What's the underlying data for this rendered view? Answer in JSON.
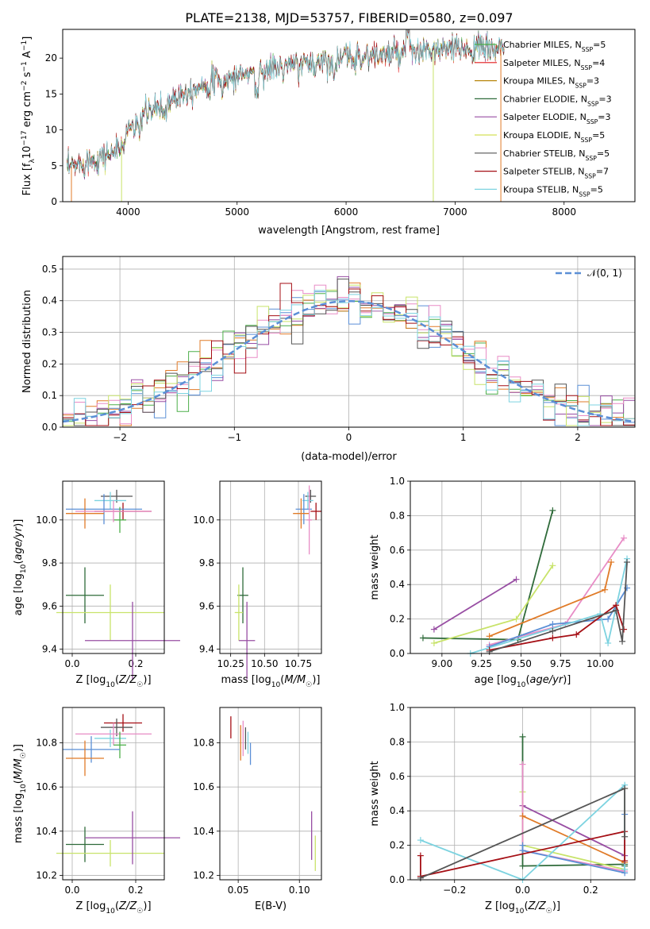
{
  "figure_title": "PLATE=2138, MJD=53757, FIBERID=0580, z=0.097",
  "chart_data": [
    {
      "type": "line",
      "panel": "spectrum",
      "xlabel": "wavelength [Angstrom, rest frame]",
      "ylabel": "Flux [fλ10⁻¹⁷ erg cm⁻² s⁻¹ A⁻¹]",
      "xlim": [
        3400,
        8650
      ],
      "ylim": [
        0,
        24
      ],
      "xticks": [
        "4000",
        "5000",
        "6000",
        "7000",
        "8000"
      ],
      "yticks": [
        "0",
        "5",
        "10",
        "15",
        "20"
      ],
      "legend_position": "top-right",
      "continuum": {
        "x": [
          3450,
          3600,
          3800,
          3950,
          4000,
          4100,
          4300,
          4500,
          4700,
          5000,
          5200,
          5400,
          5600,
          5800,
          6000,
          6200,
          6400,
          6600,
          6800,
          7000,
          7200,
          7400
        ],
        "y": [
          4.6,
          5.5,
          6.5,
          7.6,
          10.2,
          11.7,
          13.4,
          15.2,
          16.4,
          17.5,
          18.2,
          18.7,
          19.1,
          19.6,
          20.1,
          20.3,
          20.5,
          20.8,
          21.0,
          21.2,
          21.3,
          21.4
        ]
      },
      "series": [
        {
          "label": "Chabrier MILES, N_SSP=5",
          "color": "#4daf4a"
        },
        {
          "label": "Salpeter MILES, N_SSP=4",
          "color": "#e41a1c"
        },
        {
          "label": "Kroupa MILES, N_SSP=3",
          "color": "#b8860b"
        },
        {
          "label": "Chabrier ELODIE, N_SSP=3",
          "color": "#2f6b3a"
        },
        {
          "label": "Salpeter ELODIE, N_SSP=3",
          "color": "#984ea3"
        },
        {
          "label": "Kroupa ELODIE, N_SSP=5",
          "color": "#d4e157"
        },
        {
          "label": "Chabrier STELIB, N_SSP=5",
          "color": "#555555"
        },
        {
          "label": "Salpeter STELIB, N_SSP=7",
          "color": "#a50f15"
        },
        {
          "label": "Kroupa STELIB, N_SSP=5",
          "color": "#7dd3e0"
        }
      ]
    },
    {
      "type": "line",
      "panel": "residuals",
      "xlabel": "(data-model)/error",
      "ylabel": "Normed distribution",
      "xlim": [
        -2.5,
        2.5
      ],
      "ylim": [
        0,
        0.54
      ],
      "xticks": [
        "−2",
        "−1",
        "0",
        "1",
        "2"
      ],
      "yticks": [
        "0.0",
        "0.1",
        "0.2",
        "0.3",
        "0.4",
        "0.5"
      ],
      "legend": "𝒩(0, 1)",
      "legend_position": "top-right",
      "gaussian_color": "#5b8fd6",
      "histogram_colors": [
        "#4daf4a",
        "#e07b28",
        "#5b8fd6",
        "#984ea3",
        "#e88cc6",
        "#c8e36a",
        "#555555",
        "#a50f15",
        "#7dd3e0"
      ]
    },
    {
      "type": "scatter",
      "panel": "age-vs-metallicity",
      "xlabel": "Z [log10(Z/Z☉)]",
      "ylabel": "age  [log10(age/yr)]",
      "xlim": [
        -0.03,
        0.29
      ],
      "ylim": [
        9.38,
        10.18
      ],
      "xticks": [
        "0.0",
        "0.2"
      ],
      "yticks": [
        "9.4",
        "9.6",
        "9.8",
        "10.0"
      ],
      "points": [
        {
          "x": 0.16,
          "y": 10.04,
          "xerr": 0.09,
          "yerr": 0.04,
          "color": "#a50f15"
        },
        {
          "x": 0.14,
          "y": 10.11,
          "xerr": 0.05,
          "yerr": 0.03,
          "color": "#555555"
        },
        {
          "x": 0.12,
          "y": 10.09,
          "xerr": 0.05,
          "yerr": 0.04,
          "color": "#7dd3e0"
        },
        {
          "x": 0.1,
          "y": 10.05,
          "xerr": 0.12,
          "yerr": 0.07,
          "color": "#5b8fd6"
        },
        {
          "x": 0.15,
          "y": 10.0,
          "xerr": 0.02,
          "yerr": 0.06,
          "color": "#4daf4a"
        },
        {
          "x": 0.04,
          "y": 10.03,
          "xerr": 0.06,
          "yerr": 0.07,
          "color": "#e07b28"
        },
        {
          "x": 0.13,
          "y": 10.04,
          "xerr": 0.12,
          "yerr": 0.05,
          "color": "#e88cc6"
        },
        {
          "x": 0.04,
          "y": 9.65,
          "xerr": 0.06,
          "yerr": 0.13,
          "color": "#2f6b3a"
        },
        {
          "x": 0.12,
          "y": 9.57,
          "xerr": 0.17,
          "yerr": 0.13,
          "color": "#c8e36a"
        },
        {
          "x": 0.19,
          "y": 9.44,
          "xerr": 0.15,
          "yerr": 0.18,
          "color": "#984ea3"
        }
      ]
    },
    {
      "type": "scatter",
      "panel": "age-vs-mass",
      "xlabel": "mass [log10(M/M☉)]",
      "xlim": [
        10.17,
        10.92
      ],
      "ylim": [
        9.38,
        10.18
      ],
      "xticks": [
        "10.25",
        "10.50",
        "10.75"
      ],
      "yticks": [
        "9.4",
        "9.6",
        "9.8",
        "10.0"
      ],
      "points": [
        {
          "x": 10.88,
          "y": 10.04,
          "xerr": 0.04,
          "yerr": 0.04,
          "color": "#a50f15"
        },
        {
          "x": 10.84,
          "y": 10.11,
          "xerr": 0.04,
          "yerr": 0.03,
          "color": "#555555"
        },
        {
          "x": 10.82,
          "y": 10.09,
          "xerr": 0.04,
          "yerr": 0.04,
          "color": "#7dd3e0"
        },
        {
          "x": 10.79,
          "y": 10.05,
          "xerr": 0.06,
          "yerr": 0.07,
          "color": "#5b8fd6"
        },
        {
          "x": 10.77,
          "y": 10.03,
          "xerr": 0.06,
          "yerr": 0.07,
          "color": "#e07b28"
        },
        {
          "x": 10.83,
          "y": 10.0,
          "xerr": 0.02,
          "yerr": 0.16,
          "color": "#e88cc6"
        },
        {
          "x": 10.34,
          "y": 9.65,
          "xerr": 0.04,
          "yerr": 0.13,
          "color": "#2f6b3a"
        },
        {
          "x": 10.31,
          "y": 9.57,
          "xerr": 0.03,
          "yerr": 0.13,
          "color": "#c8e36a"
        },
        {
          "x": 10.37,
          "y": 9.44,
          "xerr": 0.06,
          "yerr": 0.18,
          "color": "#984ea3"
        }
      ]
    },
    {
      "type": "line",
      "panel": "mass-weight-vs-age",
      "xlabel": "age  [log10(age/yr)]",
      "ylabel": "mass weight",
      "xlim": [
        8.8,
        10.22
      ],
      "ylim": [
        0,
        1.0
      ],
      "xticks": [
        "9.00",
        "9.25",
        "9.50",
        "9.75",
        "10.00"
      ],
      "yticks": [
        "0.0",
        "0.2",
        "0.4",
        "0.6",
        "0.8",
        "1.0"
      ],
      "series": [
        {
          "color": "#2f6b3a",
          "x": [
            8.88,
            9.48,
            9.7
          ],
          "y": [
            0.09,
            0.08,
            0.83
          ]
        },
        {
          "color": "#984ea3",
          "x": [
            8.95,
            9.47
          ],
          "y": [
            0.14,
            0.43
          ]
        },
        {
          "color": "#c8e36a",
          "x": [
            8.95,
            9.47,
            9.7
          ],
          "y": [
            0.06,
            0.2,
            0.51
          ]
        },
        {
          "color": "#e88cc6",
          "x": [
            9.3,
            9.78,
            10.15
          ],
          "y": [
            0.05,
            0.17,
            0.67
          ]
        },
        {
          "color": "#e07b28",
          "x": [
            9.3,
            10.03,
            10.07
          ],
          "y": [
            0.1,
            0.37,
            0.53
          ]
        },
        {
          "color": "#5b8fd6",
          "x": [
            9.3,
            9.7,
            10.05,
            10.17
          ],
          "y": [
            0.04,
            0.17,
            0.2,
            0.38
          ]
        },
        {
          "color": "#7dd3e0",
          "x": [
            9.18,
            10.0,
            10.05,
            10.17
          ],
          "y": [
            0.0,
            0.23,
            0.06,
            0.55
          ]
        },
        {
          "color": "#a50f15",
          "x": [
            9.3,
            9.7,
            9.85,
            10.1,
            10.15
          ],
          "y": [
            0.02,
            0.09,
            0.11,
            0.28,
            0.14
          ]
        },
        {
          "color": "#555555",
          "x": [
            9.3,
            9.7,
            10.1,
            10.14,
            10.17
          ],
          "y": [
            0.01,
            0.13,
            0.25,
            0.07,
            0.53
          ]
        }
      ]
    },
    {
      "type": "scatter",
      "panel": "mass-vs-metallicity",
      "xlabel": "Z [log10(Z/Z☉)]",
      "ylabel": "mass [log10(M/M☉)]",
      "xlim": [
        -0.03,
        0.29
      ],
      "ylim": [
        10.18,
        10.96
      ],
      "xticks": [
        "0.0",
        "0.2"
      ],
      "yticks": [
        "10.2",
        "10.4",
        "10.6",
        "10.8"
      ],
      "points": [
        {
          "x": 0.16,
          "y": 10.89,
          "xerr": 0.06,
          "yerr": 0.04,
          "color": "#a50f15"
        },
        {
          "x": 0.14,
          "y": 10.87,
          "xerr": 0.05,
          "yerr": 0.04,
          "color": "#555555"
        },
        {
          "x": 0.12,
          "y": 10.82,
          "xerr": 0.05,
          "yerr": 0.04,
          "color": "#7dd3e0"
        },
        {
          "x": 0.13,
          "y": 10.84,
          "xerr": 0.12,
          "yerr": 0.05,
          "color": "#e88cc6"
        },
        {
          "x": 0.15,
          "y": 10.79,
          "xerr": 0.02,
          "yerr": 0.06,
          "color": "#4daf4a"
        },
        {
          "x": 0.06,
          "y": 10.77,
          "xerr": 0.09,
          "yerr": 0.06,
          "color": "#5b8fd6"
        },
        {
          "x": 0.04,
          "y": 10.73,
          "xerr": 0.06,
          "yerr": 0.08,
          "color": "#e07b28"
        },
        {
          "x": 0.04,
          "y": 10.34,
          "xerr": 0.06,
          "yerr": 0.08,
          "color": "#2f6b3a"
        },
        {
          "x": 0.12,
          "y": 10.3,
          "xerr": 0.17,
          "yerr": 0.06,
          "color": "#c8e36a"
        },
        {
          "x": 0.19,
          "y": 10.37,
          "xerr": 0.15,
          "yerr": 0.12,
          "color": "#984ea3"
        }
      ]
    },
    {
      "type": "scatter",
      "panel": "mass-vs-extinction",
      "xlabel": "E(B-V)",
      "xlim": [
        0.035,
        0.118
      ],
      "ylim": [
        10.18,
        10.96
      ],
      "xticks": [
        "0.05",
        "0.10"
      ],
      "yticks": [
        "10.2",
        "10.4",
        "10.6",
        "10.8"
      ],
      "points": [
        {
          "x": 0.044,
          "y": 10.87,
          "yerr": 0.05,
          "color": "#a50f15"
        },
        {
          "x": 0.052,
          "y": 10.8,
          "yerr": 0.08,
          "color": "#e07b28"
        },
        {
          "x": 0.054,
          "y": 10.82,
          "yerr": 0.08,
          "color": "#e88cc6"
        },
        {
          "x": 0.056,
          "y": 10.82,
          "yerr": 0.05,
          "color": "#555555"
        },
        {
          "x": 0.058,
          "y": 10.8,
          "yerr": 0.05,
          "color": "#7dd3e0"
        },
        {
          "x": 0.06,
          "y": 10.75,
          "yerr": 0.05,
          "color": "#5b8fd6"
        },
        {
          "x": 0.11,
          "y": 10.38,
          "yerr": 0.11,
          "color": "#984ea3"
        },
        {
          "x": 0.113,
          "y": 10.3,
          "yerr": 0.08,
          "color": "#c8e36a"
        }
      ]
    },
    {
      "type": "line",
      "panel": "mass-weight-vs-metallicity",
      "xlabel": "Z [log10(Z/Z☉)]",
      "ylabel": "mass weight",
      "xlim": [
        -0.33,
        0.33
      ],
      "ylim": [
        0,
        1.0
      ],
      "xticks": [
        "−0.2",
        "0.0",
        "0.2"
      ],
      "yticks": [
        "0.0",
        "0.2",
        "0.4",
        "0.6",
        "0.8",
        "1.0"
      ],
      "series": [
        {
          "color": "#2f6b3a",
          "x": [
            0.0,
            0.0,
            0.3,
            0.3
          ],
          "y": [
            0.83,
            0.08,
            0.09,
            0.08
          ]
        },
        {
          "color": "#984ea3",
          "x": [
            0.0,
            0.3
          ],
          "y": [
            0.43,
            0.14
          ]
        },
        {
          "color": "#c8e36a",
          "x": [
            0.0,
            0.0,
            0.3
          ],
          "y": [
            0.51,
            0.2,
            0.06
          ]
        },
        {
          "color": "#e88cc6",
          "x": [
            0.0,
            0.0,
            0.3
          ],
          "y": [
            0.67,
            0.17,
            0.05
          ]
        },
        {
          "color": "#e07b28",
          "x": [
            0.0,
            0.3,
            0.3
          ],
          "y": [
            0.37,
            0.1,
            0.53
          ]
        },
        {
          "color": "#5b8fd6",
          "x": [
            0.0,
            0.0,
            0.3,
            0.3
          ],
          "y": [
            0.2,
            0.17,
            0.04,
            0.38
          ]
        },
        {
          "color": "#7dd3e0",
          "x": [
            -0.3,
            0.0,
            0.3,
            0.3
          ],
          "y": [
            0.23,
            0.0,
            0.55,
            0.06
          ]
        },
        {
          "color": "#a50f15",
          "x": [
            -0.3,
            -0.3,
            0.3,
            0.3
          ],
          "y": [
            0.14,
            0.02,
            0.28,
            0.11
          ]
        },
        {
          "color": "#555555",
          "x": [
            -0.3,
            0.3,
            0.3
          ],
          "y": [
            0.01,
            0.53,
            0.25
          ]
        }
      ]
    }
  ]
}
